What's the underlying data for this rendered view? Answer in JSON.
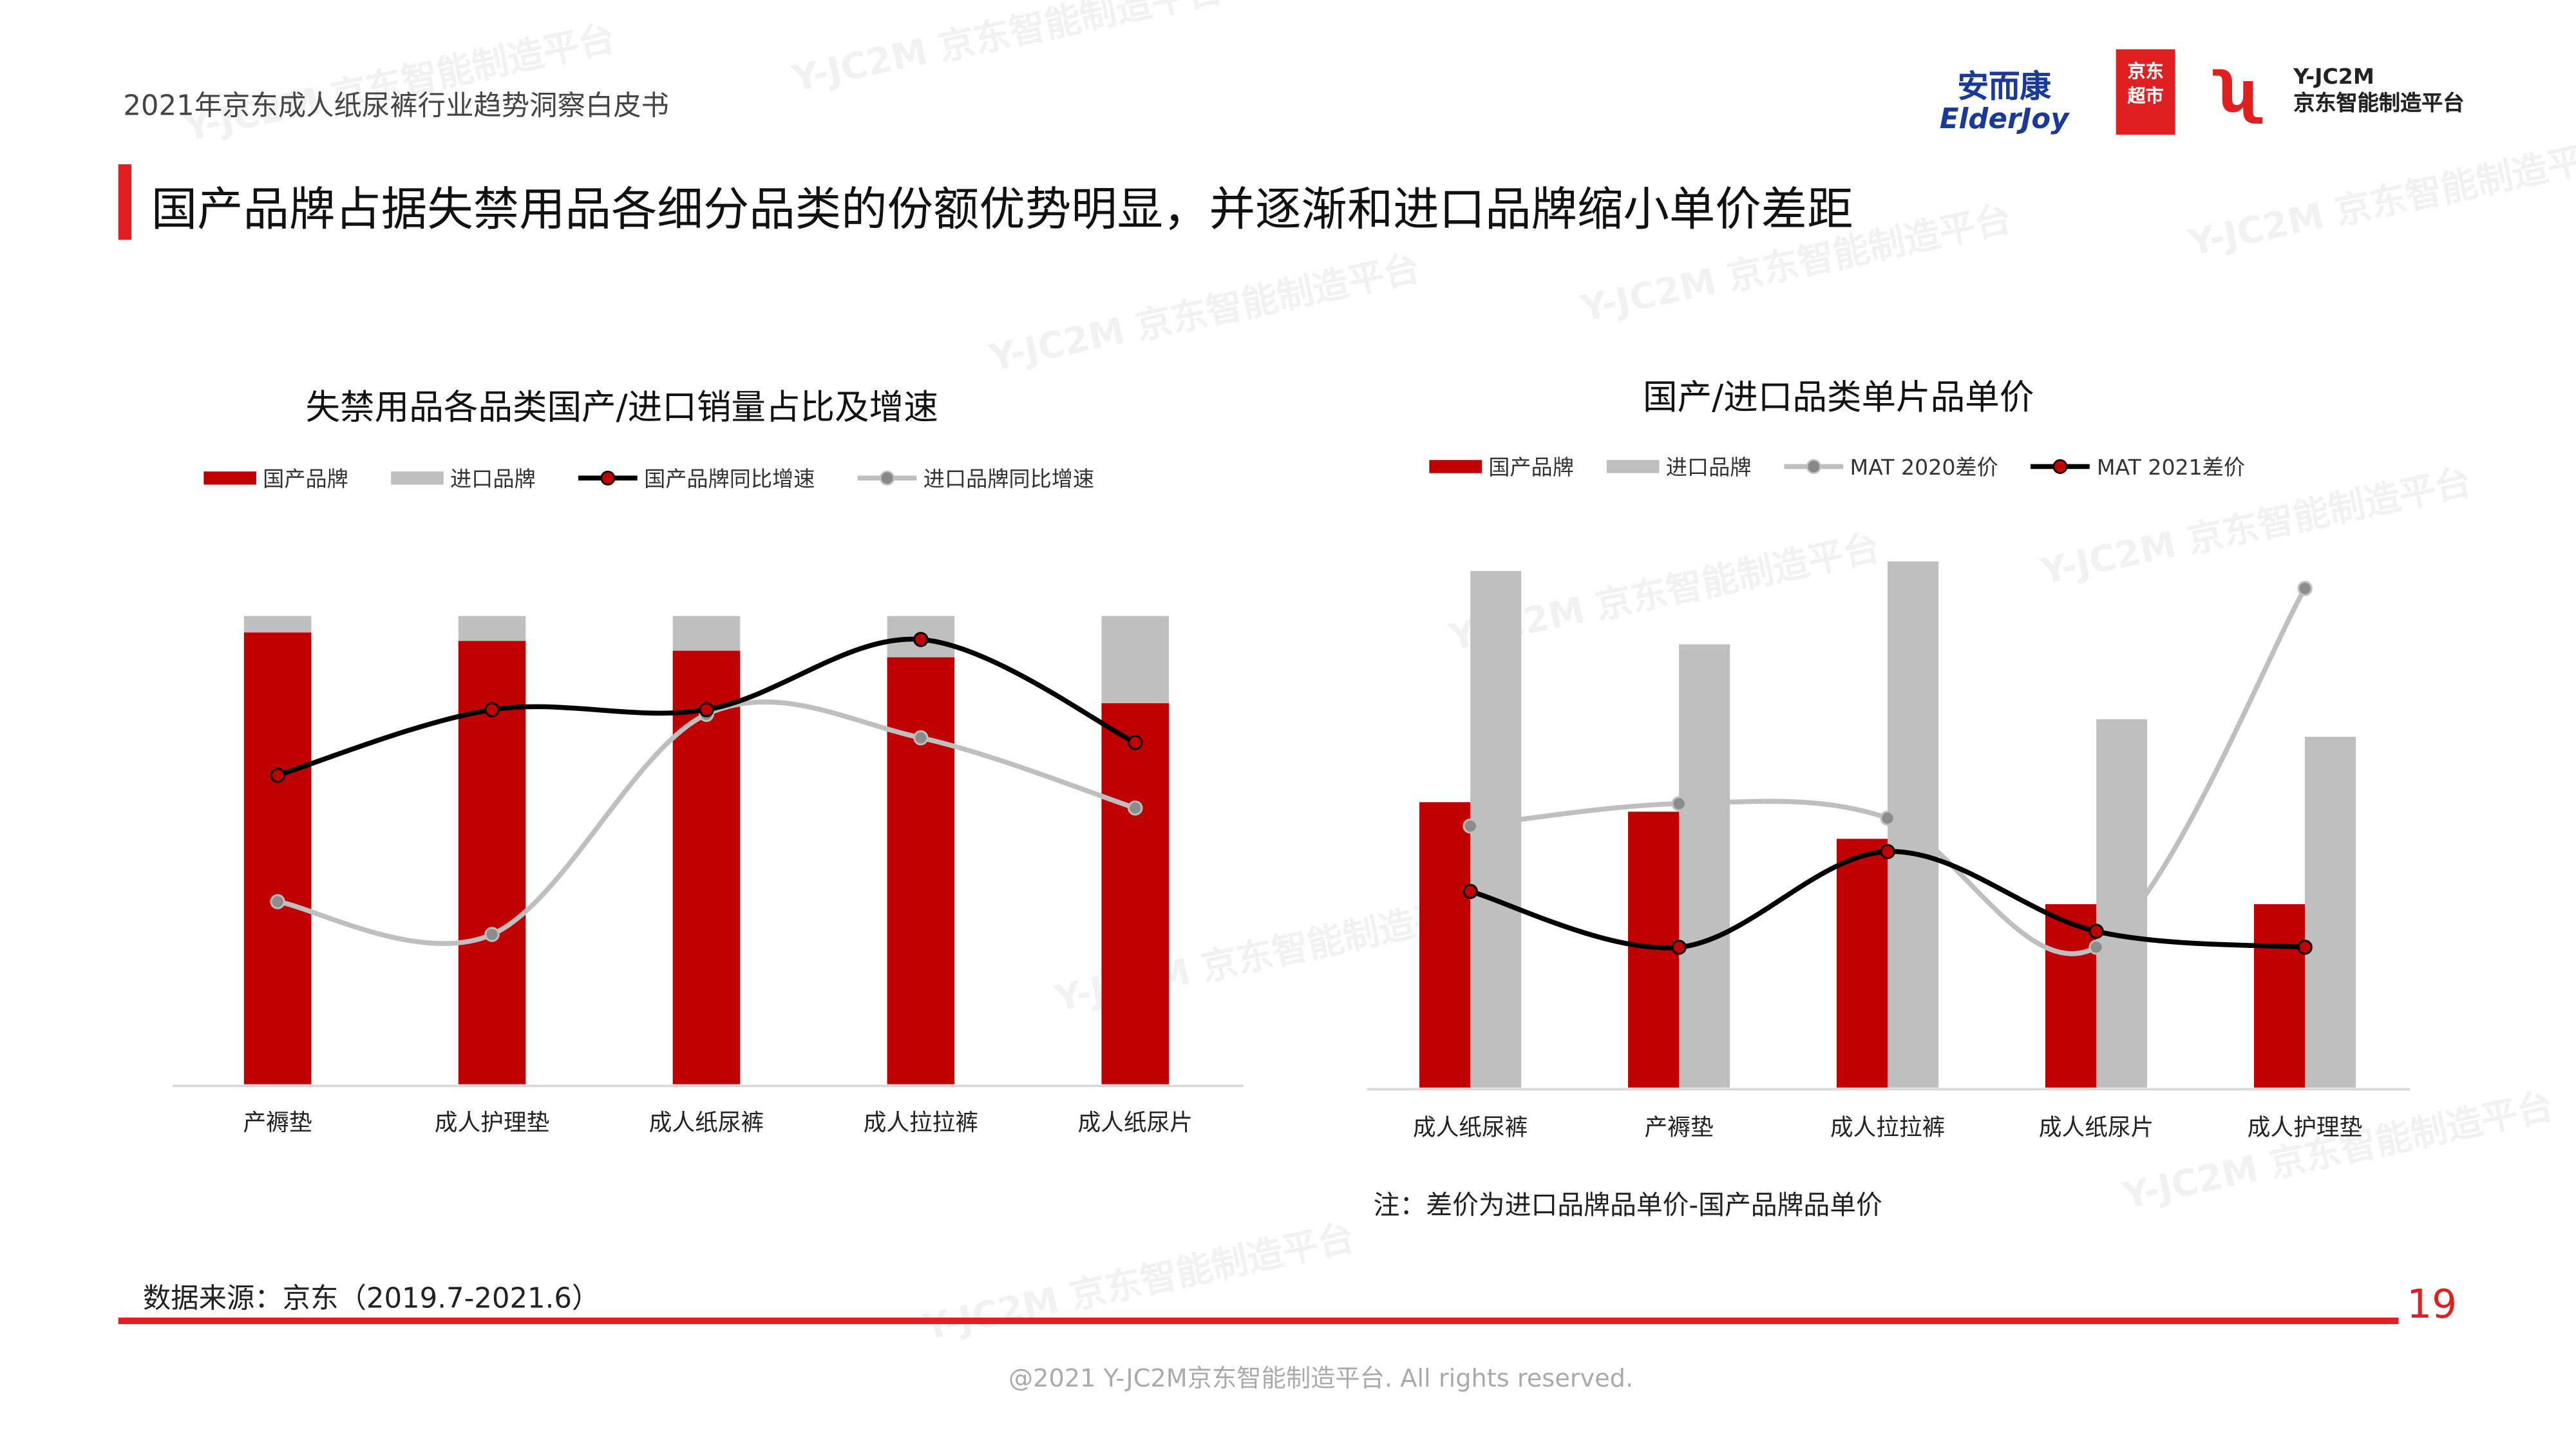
{
  "header": {
    "doc_title": "2021年京东成人纸尿裤行业趋势洞察白皮书",
    "headline": "国产品牌占据失禁用品各细分品类的份额优势明显，并逐渐和进口品牌缩小单价差距",
    "logos": {
      "elderjoy_cn": "安而康",
      "elderjoy_en": "ElderJoy",
      "jd_market_1": "京东",
      "jd_market_2": "超市",
      "yjc2m_en": "Y-JC2M",
      "yjc2m_cn": "京东智能制造平台"
    }
  },
  "colors": {
    "domestic": "#c00000",
    "import": "#bfbfbf",
    "accent": "#e02020",
    "line_dark": "#000000",
    "line_light": "#bfbfbf"
  },
  "chart_data": [
    {
      "type": "bar",
      "stacked": true,
      "title": "失禁用品各品类国产/进口销量占比及增速",
      "categories": [
        "产褥垫",
        "成人护理垫",
        "成人纸尿裤",
        "成人拉拉裤",
        "成人纸尿片"
      ],
      "ylim": [
        0,
        100
      ],
      "grid": false,
      "legend_position": "top",
      "series": [
        {
          "name": "国产品牌",
          "kind": "bar",
          "values": [
            96.5,
            94.7,
            92.6,
            91.2,
            81.4
          ],
          "color": "#c00000"
        },
        {
          "name": "进口品牌",
          "kind": "bar",
          "values": [
            3.5,
            5.3,
            7.4,
            8.8,
            18.6
          ],
          "color": "#bfbfbf"
        },
        {
          "name": "国产品牌同比增速",
          "kind": "line",
          "values": [
            66,
            80,
            80,
            95,
            73
          ],
          "color": "#000000"
        },
        {
          "name": "进口品牌同比增速",
          "kind": "line",
          "values": [
            39,
            32,
            79,
            74,
            59
          ],
          "color": "#bfbfbf"
        }
      ]
    },
    {
      "type": "bar",
      "title": "国产/进口品类单片品单价",
      "categories": [
        "成人纸尿裤",
        "产褥垫",
        "成人拉拉裤",
        "成人纸尿片",
        "成人护理垫"
      ],
      "ylim": [
        0,
        340
      ],
      "grid": false,
      "legend_position": "top",
      "series": [
        {
          "name": "国产品牌",
          "kind": "bar",
          "values": [
            179,
            173,
            156,
            115,
            115
          ],
          "color": "#c00000"
        },
        {
          "name": "进口品牌",
          "kind": "bar",
          "values": [
            324,
            278,
            330,
            231,
            220
          ],
          "color": "#bfbfbf"
        },
        {
          "name": "MAT 2020差价",
          "kind": "line",
          "values": [
            164,
            178,
            169,
            88,
            313
          ],
          "color": "#bfbfbf"
        },
        {
          "name": "MAT 2021差价",
          "kind": "line",
          "values": [
            123,
            88,
            148,
            98,
            88
          ],
          "color": "#000000"
        }
      ],
      "note": "注：差价为进口品牌品单价-国产品牌品单价"
    }
  ],
  "footer": {
    "source": "数据来源：京东（2019.7-2021.6）",
    "page_number": "19",
    "copyright": "@2021 Y-JC2M京东智能制造平台. All rights reserved."
  },
  "watermark": "Y-JC2M 京东智能制造平台"
}
